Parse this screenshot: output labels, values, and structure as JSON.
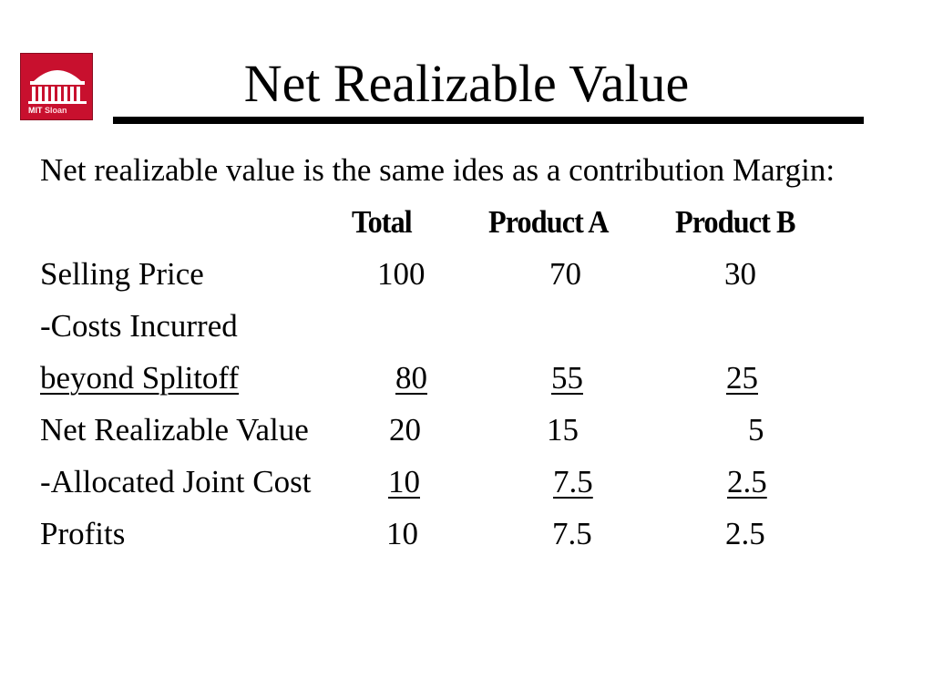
{
  "logo": {
    "mark": "MIT",
    "name": "Sloan"
  },
  "title": "Net Realizable Value",
  "intro": "Net realizable value is the same ides as a contribution Margin:",
  "table": {
    "headers": [
      "Total",
      "Product A",
      "Product B"
    ],
    "rows": [
      {
        "label": "Selling Price",
        "values": [
          "100",
          "70",
          "30"
        ]
      },
      {
        "label": "-Costs Incurred",
        "values": [
          "",
          "",
          ""
        ]
      },
      {
        "label": "beyond Splitoff",
        "values": [
          "80",
          "55",
          "25"
        ]
      },
      {
        "label": "Net Realizable Value",
        "values": [
          "20",
          "15",
          "5"
        ]
      },
      {
        "label": "-Allocated Joint Cost",
        "values": [
          "10",
          "7.5",
          "2.5"
        ]
      },
      {
        "label": "Profits",
        "values": [
          "10",
          "7.5",
          "2.5"
        ]
      }
    ]
  }
}
